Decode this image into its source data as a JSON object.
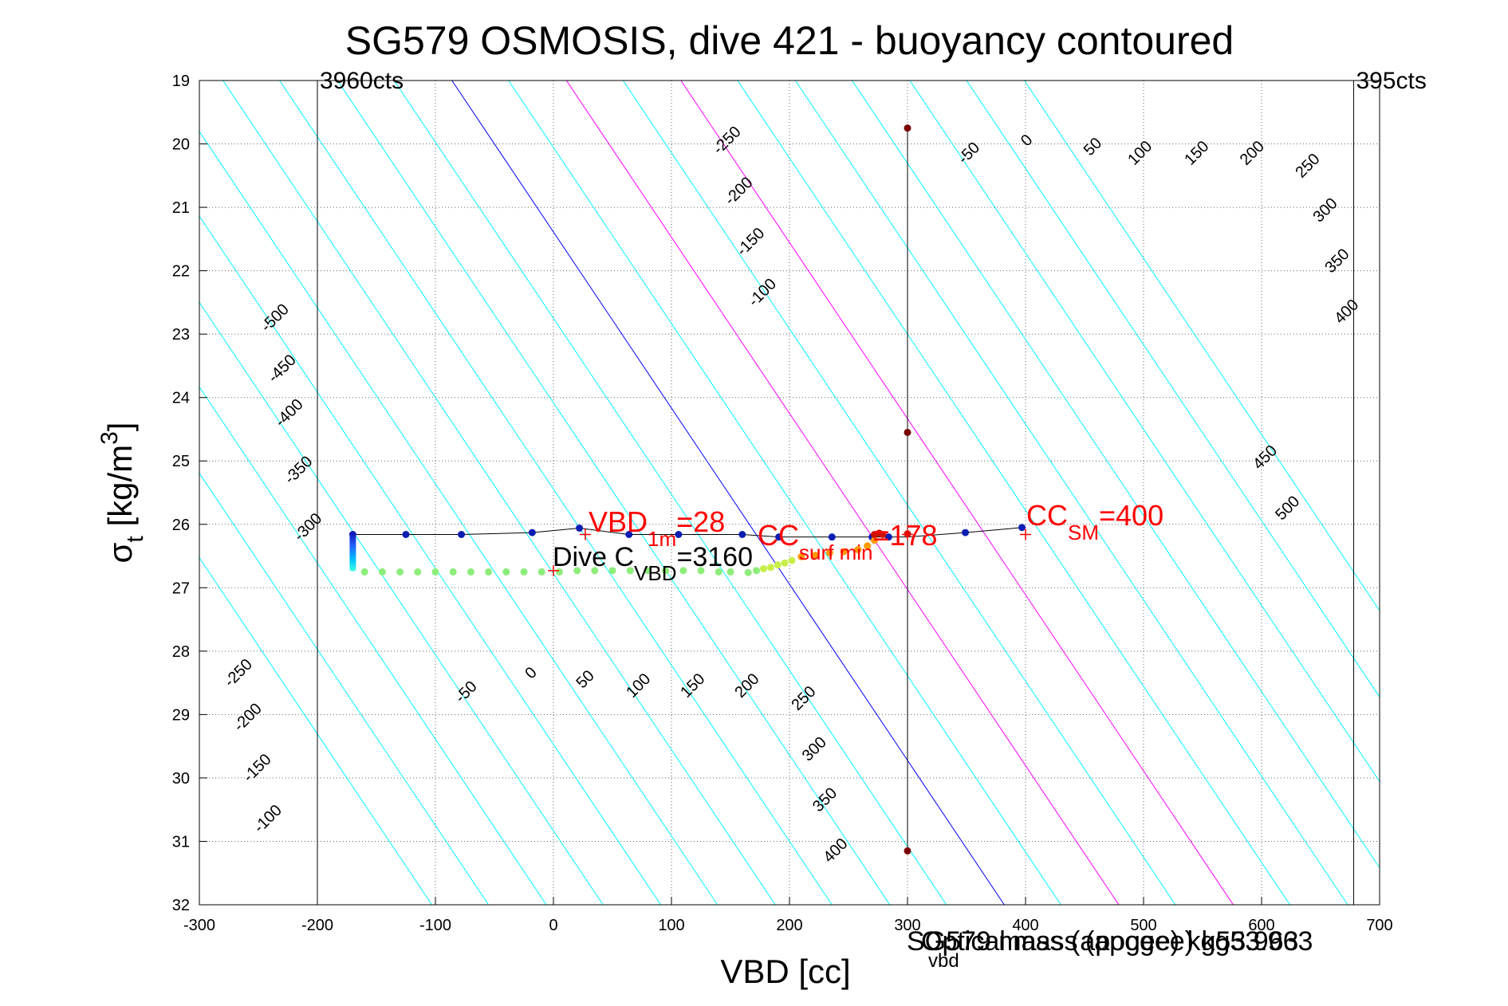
{
  "chart_data": {
    "type": "scatter",
    "title": "SG579 OSMOSIS, dive 421 - buoyancy contoured",
    "xlabel": "VBD [cc]",
    "ylabel": {
      "main": "σ",
      "sub": "t",
      "rest": " [kg/m",
      "sup": "3",
      "close": "]"
    },
    "xlim": [
      -300,
      700
    ],
    "ylim": [
      19,
      32
    ],
    "y_reversed": true,
    "grid": true,
    "xticks": [
      -300,
      -200,
      -100,
      0,
      100,
      200,
      300,
      400,
      500,
      600,
      700
    ],
    "yticks": [
      19,
      20,
      21,
      22,
      23,
      24,
      25,
      26,
      27,
      28,
      29,
      30,
      31,
      32
    ],
    "xtick_labels": [
      "-300",
      "-200",
      "-100",
      "0",
      "100",
      "200",
      "300",
      "400",
      "500",
      "600",
      "700"
    ],
    "ytick_labels": [
      "19",
      "20",
      "21",
      "22",
      "23",
      "24",
      "25",
      "26",
      "27",
      "28",
      "29",
      "30",
      "31",
      "32"
    ],
    "vbd_limits": [
      {
        "vbd": -200,
        "label": "3960cts"
      },
      {
        "vbd": 678,
        "label": "395cts"
      }
    ],
    "contours": {
      "levels": [
        -500,
        -450,
        -400,
        -350,
        -300,
        -250,
        -200,
        -150,
        -100,
        -50,
        0,
        50,
        100,
        150,
        200,
        250,
        300,
        350,
        400,
        450,
        500
      ],
      "vbd_at_sigma_26": [
        -319,
        -271,
        -222,
        -174,
        -125,
        -77,
        -28,
        20,
        69,
        117,
        166,
        214,
        263,
        311,
        360,
        408,
        457,
        505,
        554,
        602,
        651
      ],
      "vbd_per_sigma": 36,
      "colors": {
        "other": "#00ffff",
        "zero": "#0000ff",
        "highlight": "#ff00ff"
      },
      "highlight_levels": [
        100,
        200
      ],
      "upper_labels": [
        {
          "text": "-250",
          "vbd": 150,
          "sigma": 20.0
        },
        {
          "text": "-200",
          "vbd": 160,
          "sigma": 20.8
        },
        {
          "text": "-150",
          "vbd": 170,
          "sigma": 21.6
        },
        {
          "text": "-100",
          "vbd": 180,
          "sigma": 22.4
        },
        {
          "text": "-50",
          "vbd": 355,
          "sigma": 20.2
        },
        {
          "text": "0",
          "vbd": 404,
          "sigma": 20.0
        },
        {
          "text": "50",
          "vbd": 460,
          "sigma": 20.1
        },
        {
          "text": "100",
          "vbd": 500,
          "sigma": 20.2
        },
        {
          "text": "150",
          "vbd": 548,
          "sigma": 20.2
        },
        {
          "text": "200",
          "vbd": 595,
          "sigma": 20.2
        },
        {
          "text": "250",
          "vbd": 642,
          "sigma": 20.4
        },
        {
          "text": "300",
          "vbd": 657,
          "sigma": 21.1
        },
        {
          "text": "350",
          "vbd": 667,
          "sigma": 21.9
        },
        {
          "text": "400",
          "vbd": 675,
          "sigma": 22.7
        },
        {
          "text": "450",
          "vbd": 606,
          "sigma": 25.0
        },
        {
          "text": "500",
          "vbd": 625,
          "sigma": 25.8
        }
      ],
      "left_labels": [
        {
          "text": "-500",
          "vbd": -233,
          "sigma": 22.8
        },
        {
          "text": "-450",
          "vbd": -227,
          "sigma": 23.6
        },
        {
          "text": "-400",
          "vbd": -221,
          "sigma": 24.3
        },
        {
          "text": "-350",
          "vbd": -213,
          "sigma": 25.2
        },
        {
          "text": "-300",
          "vbd": -205,
          "sigma": 26.1
        },
        {
          "text": "-250",
          "vbd": -264,
          "sigma": 28.4
        },
        {
          "text": "-200",
          "vbd": -256,
          "sigma": 29.1
        },
        {
          "text": "-150",
          "vbd": -248,
          "sigma": 29.9
        },
        {
          "text": "-100",
          "vbd": -239,
          "sigma": 30.7
        }
      ],
      "lower_labels": [
        {
          "text": "-50",
          "vbd": -71,
          "sigma": 28.7
        },
        {
          "text": "0",
          "vbd": -16,
          "sigma": 28.4
        },
        {
          "text": "50",
          "vbd": 30,
          "sigma": 28.5
        },
        {
          "text": "100",
          "vbd": 75,
          "sigma": 28.6
        },
        {
          "text": "150",
          "vbd": 121,
          "sigma": 28.6
        },
        {
          "text": "200",
          "vbd": 167,
          "sigma": 28.6
        },
        {
          "text": "250",
          "vbd": 215,
          "sigma": 28.8
        },
        {
          "text": "300",
          "vbd": 224,
          "sigma": 29.6
        },
        {
          "text": "350",
          "vbd": 233,
          "sigma": 30.4
        },
        {
          "text": "400",
          "vbd": 242,
          "sigma": 31.2
        }
      ]
    },
    "series": [
      {
        "marker": "line",
        "color": "#000000",
        "x": [
          -170,
          -125,
          -78,
          -18,
          22,
          64,
          106,
          160,
          191,
          236,
          270,
          284,
          300,
          349,
          397
        ],
        "y": [
          26.16,
          26.16,
          26.16,
          26.13,
          26.06,
          26.16,
          26.16,
          26.16,
          26.2,
          26.2,
          26.2,
          26.2,
          26.2,
          26.13,
          26.05
        ]
      },
      {
        "marker": "points",
        "color": "#0b1db3",
        "x": [
          -170,
          -125,
          -78,
          -18,
          22,
          64,
          106,
          160,
          191,
          236,
          270,
          284,
          349,
          397
        ],
        "y": [
          26.16,
          26.16,
          26.16,
          26.13,
          26.06,
          26.16,
          26.16,
          26.16,
          26.2,
          26.2,
          26.2,
          26.2,
          26.13,
          26.05
        ]
      },
      {
        "marker": "points",
        "color": "#8ded7a",
        "x": [
          -160,
          -145,
          -130,
          -115,
          -100,
          -85,
          -70,
          -55,
          -40,
          -25,
          -10,
          5,
          20,
          35,
          50,
          65,
          80,
          95,
          110,
          125,
          140,
          150,
          165,
          172
        ],
        "y": [
          26.75,
          26.75,
          26.75,
          26.75,
          26.75,
          26.75,
          26.75,
          26.75,
          26.75,
          26.75,
          26.75,
          26.75,
          26.73,
          26.73,
          26.73,
          26.73,
          26.73,
          26.73,
          26.73,
          26.73,
          26.75,
          26.75,
          26.76,
          26.73
        ]
      },
      {
        "marker": "points",
        "color": "#c8ee4a",
        "x": [
          178,
          184,
          190,
          196,
          202
        ],
        "y": [
          26.7,
          26.68,
          26.64,
          26.61,
          26.57
        ]
      },
      {
        "marker": "points",
        "color": "#ff9900",
        "x": [
          210,
          222,
          234,
          246,
          258,
          266,
          272
        ],
        "y": [
          26.51,
          26.49,
          26.45,
          26.43,
          26.4,
          26.34,
          26.25
        ]
      },
      {
        "marker": "points",
        "color": "#cc1100",
        "x": [
          272,
          276,
          279,
          300
        ],
        "y": [
          26.16,
          26.14,
          26.16,
          26.15
        ]
      },
      {
        "marker": "points",
        "color": "#7a0000",
        "x": [
          300,
          300,
          300
        ],
        "y": [
          19.75,
          24.55,
          31.15
        ]
      }
    ],
    "descent_band": {
      "vbd": -170,
      "sigma_range": [
        26.12,
        26.74
      ],
      "colors": [
        "#1010b0",
        "#2060ff",
        "#00c0ff",
        "#40ffe0"
      ]
    },
    "vertical_line_vbd": 300,
    "crosses": [
      {
        "vbd": 27,
        "sigma": 26.16
      },
      {
        "vbd": 0,
        "sigma": 26.73
      },
      {
        "vbd": 300,
        "sigma": 26.16
      },
      {
        "vbd": 400,
        "sigma": 26.16
      }
    ],
    "annotations": {
      "vbd1m": {
        "main": "VBD",
        "sub": "1m",
        "tail": "=28"
      },
      "ccsurf": {
        "main": "CC",
        "sub": "surf min",
        "tail": "=178"
      },
      "ccsm": {
        "main": "CC",
        "sub": "SM",
        "tail": "=400"
      },
      "dive": {
        "main": "Dive C",
        "sub": "VBD",
        "tail": "=3160"
      }
    },
    "footer_overlap": [
      "SG579 mass (apogee) kg53.963",
      "Optical mass (apogee) kg53.963"
    ],
    "footer_vbd_sub": "vbd"
  }
}
